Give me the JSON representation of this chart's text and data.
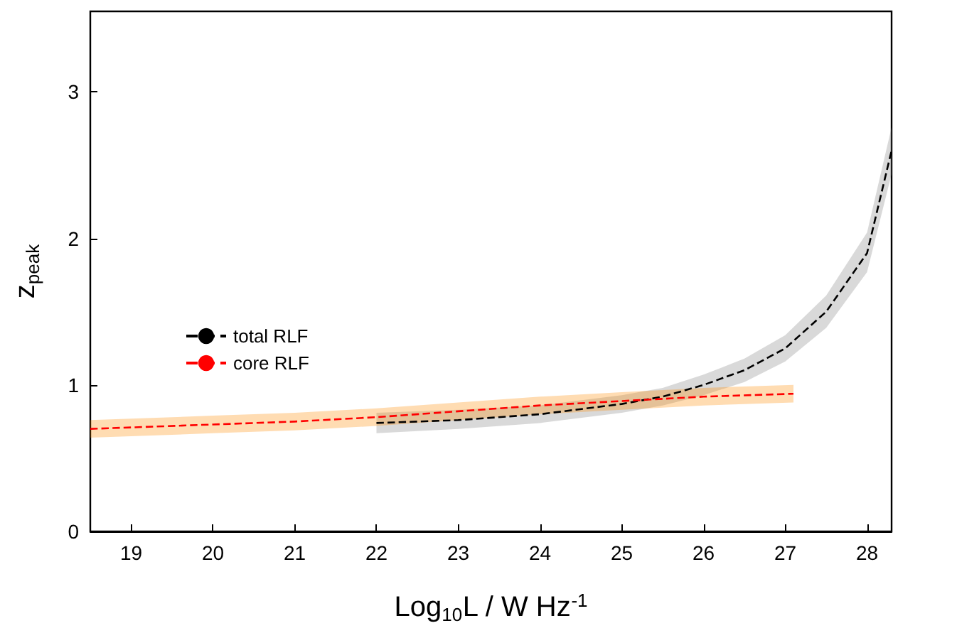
{
  "chart_data": {
    "type": "line",
    "xlabel": "Log$_{10}$L / W Hz$^{-1}$",
    "ylabel": "z$_{peak}$",
    "xlim": [
      18.5,
      28.3
    ],
    "xticks": [
      19,
      20,
      21,
      22,
      23,
      24,
      25,
      26,
      27,
      28
    ],
    "ylim": [
      0,
      3.55
    ],
    "yticks": [
      0,
      1,
      2,
      3
    ],
    "grid": false,
    "legend": "left",
    "line_style": "dashed",
    "marker": "none",
    "series": [
      {
        "name": "total RLF",
        "color": "#000000",
        "x": [
          22,
          23,
          24,
          25,
          25.5,
          26,
          26.5,
          27,
          27.5,
          28,
          28.3
        ],
        "values": [
          0.74,
          0.76,
          0.8,
          0.87,
          0.92,
          1.0,
          1.1,
          1.25,
          1.5,
          1.9,
          2.6
        ],
        "lower": [
          0.67,
          0.7,
          0.74,
          0.81,
          0.86,
          0.93,
          1.02,
          1.16,
          1.39,
          1.77,
          2.44
        ],
        "upper": [
          0.81,
          0.83,
          0.86,
          0.93,
          0.98,
          1.07,
          1.18,
          1.34,
          1.61,
          2.04,
          2.76
        ]
      },
      {
        "name": "core RLF",
        "color": "#ff0000",
        "x": [
          18.5,
          19,
          20,
          21,
          22,
          23,
          24,
          25,
          26,
          27.1
        ],
        "values": [
          0.7,
          0.71,
          0.73,
          0.75,
          0.78,
          0.82,
          0.86,
          0.89,
          0.92,
          0.94
        ],
        "lower": [
          0.64,
          0.65,
          0.67,
          0.69,
          0.72,
          0.76,
          0.8,
          0.83,
          0.86,
          0.88
        ],
        "upper": [
          0.76,
          0.77,
          0.79,
          0.81,
          0.84,
          0.88,
          0.92,
          0.95,
          0.98,
          1.0
        ]
      }
    ]
  }
}
